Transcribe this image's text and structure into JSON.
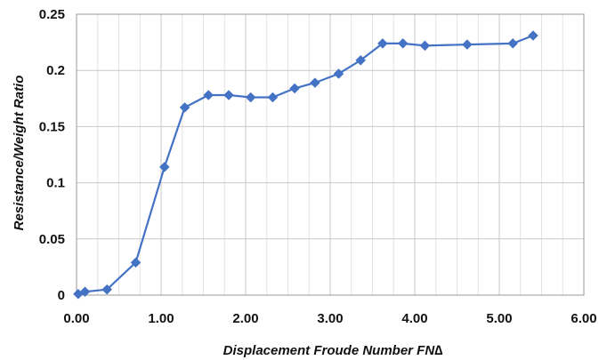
{
  "chart_data": {
    "type": "line",
    "xlabel": "Displacement  Froude Number  FN∆",
    "ylabel": "Resistance/Weight Ratio",
    "xlim": [
      0,
      6
    ],
    "ylim": [
      0,
      0.25
    ],
    "x_ticks": [
      "0.00",
      "1.00",
      "2.00",
      "3.00",
      "4.00",
      "5.00",
      "6.00"
    ],
    "y_ticks": [
      "0",
      "0.05",
      "0.1",
      "0.15",
      "0.2",
      "0.25"
    ],
    "x_minor_step": 0.25,
    "grid": true,
    "legend": "none",
    "series": [
      {
        "color": "#4472C4",
        "marker": "diamond",
        "x": [
          0.02,
          0.1,
          0.36,
          0.7,
          1.04,
          1.28,
          1.56,
          1.8,
          2.06,
          2.32,
          2.58,
          2.82,
          3.1,
          3.36,
          3.62,
          3.86,
          4.12,
          4.62,
          5.16,
          5.4
        ],
        "y": [
          0.001,
          0.003,
          0.005,
          0.029,
          0.114,
          0.167,
          0.178,
          0.178,
          0.176,
          0.176,
          0.184,
          0.189,
          0.197,
          0.209,
          0.224,
          0.224,
          0.222,
          0.223,
          0.224,
          0.231
        ]
      }
    ]
  }
}
